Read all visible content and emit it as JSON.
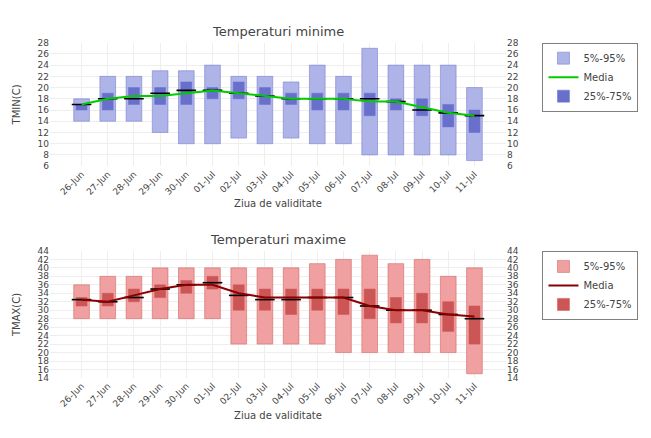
{
  "chart_data": [
    {
      "type": "box",
      "title": "Temperaturi minime",
      "xlabel": "Ziua de validitate",
      "ylabel": "TMIN(C)",
      "categories": [
        "26-Jun",
        "27-Jun",
        "28-Jun",
        "29-Jun",
        "30-Jun",
        "01-Jul",
        "02-Jul",
        "03-Jul",
        "04-Jul",
        "05-Jul",
        "06-Jul",
        "07-Jul",
        "08-Jul",
        "09-Jul",
        "10-Jul",
        "11-Jul"
      ],
      "series": [
        {
          "name": "5%-95%",
          "type": "range",
          "color": "#aeb4e8",
          "low": [
            14,
            14,
            14,
            12,
            10,
            10,
            11,
            10,
            11,
            10,
            10,
            8,
            8,
            8,
            8,
            7
          ],
          "high": [
            18,
            22,
            22,
            23,
            23,
            24,
            22,
            22,
            21,
            24,
            22,
            27,
            24,
            24,
            24,
            20
          ]
        },
        {
          "name": "Media",
          "type": "line",
          "color": "#00cc00",
          "values": [
            17,
            18,
            18.5,
            18.5,
            19,
            19.5,
            19,
            18.5,
            18,
            18,
            18,
            17.5,
            17.5,
            16.5,
            15.5,
            15
          ]
        },
        {
          "name": "25%-75%",
          "type": "range",
          "color": "#6870cc",
          "low": [
            16,
            16,
            17,
            17,
            17,
            18,
            18,
            17,
            17,
            16,
            16,
            15,
            16,
            15,
            13,
            12
          ],
          "high": [
            17,
            19,
            20,
            20,
            21,
            20,
            21,
            20,
            19,
            19,
            19,
            19,
            18,
            18,
            17,
            16
          ]
        }
      ],
      "median": [
        17,
        18,
        18,
        19,
        19.5,
        19.5,
        19,
        18.5,
        18,
        18,
        18,
        18,
        17.5,
        16,
        15.5,
        15
      ],
      "ylim": [
        6,
        28
      ],
      "yticks": [
        6,
        8,
        10,
        12,
        14,
        16,
        18,
        20,
        22,
        24,
        26,
        28
      ],
      "y2lim": [
        6,
        28
      ],
      "y2ticks": [
        6,
        8,
        10,
        12,
        14,
        16,
        18,
        20,
        22,
        24,
        26,
        28
      ],
      "grid": true,
      "legend": "right"
    },
    {
      "type": "box",
      "title": "Temperaturi maxime",
      "xlabel": "Ziua de validitate",
      "ylabel": "TMAX(C)",
      "categories": [
        "26-Jun",
        "27-Jun",
        "28-Jun",
        "29-Jun",
        "30-Jun",
        "01-Jul",
        "02-Jul",
        "03-Jul",
        "04-Jul",
        "05-Jul",
        "06-Jul",
        "07-Jul",
        "08-Jul",
        "09-Jul",
        "10-Jul",
        "11-Jul"
      ],
      "series": [
        {
          "name": "5%-95%",
          "type": "range",
          "color": "#f0a0a0",
          "low": [
            28,
            28,
            28,
            28,
            28,
            28,
            22,
            22,
            22,
            22,
            20,
            20,
            20,
            20,
            20,
            15
          ],
          "high": [
            36,
            38,
            38,
            40,
            40,
            40,
            40,
            40,
            40,
            41,
            42,
            43,
            41,
            42,
            38,
            40
          ]
        },
        {
          "name": "Media",
          "type": "line",
          "color": "#880000",
          "values": [
            32.5,
            32,
            33.5,
            35,
            36,
            36,
            34,
            33,
            33,
            33,
            33,
            31,
            30,
            30,
            29,
            28.5
          ]
        },
        {
          "name": "25%-75%",
          "type": "range",
          "color": "#cc5555",
          "low": [
            31,
            31,
            32,
            33,
            34,
            35,
            30,
            30,
            29,
            30,
            29,
            28,
            27,
            27,
            25,
            22
          ],
          "high": [
            33,
            34,
            35,
            36,
            37,
            38,
            36,
            35,
            35,
            35,
            35,
            35,
            33,
            34,
            32,
            31
          ]
        }
      ],
      "median": [
        32.5,
        32,
        33,
        35,
        36,
        36.5,
        33.5,
        32.5,
        32.5,
        33,
        33,
        31,
        30,
        30,
        29,
        28
      ],
      "ylim": [
        14,
        44
      ],
      "yticks": [
        14,
        16,
        18,
        20,
        22,
        24,
        26,
        28,
        30,
        32,
        34,
        36,
        38,
        40,
        42,
        44
      ],
      "y2lim": [
        14,
        44
      ],
      "y2ticks": [
        14,
        16,
        18,
        20,
        22,
        24,
        26,
        28,
        30,
        32,
        34,
        36,
        38,
        40,
        42,
        44
      ],
      "grid": true,
      "legend": "right"
    }
  ]
}
